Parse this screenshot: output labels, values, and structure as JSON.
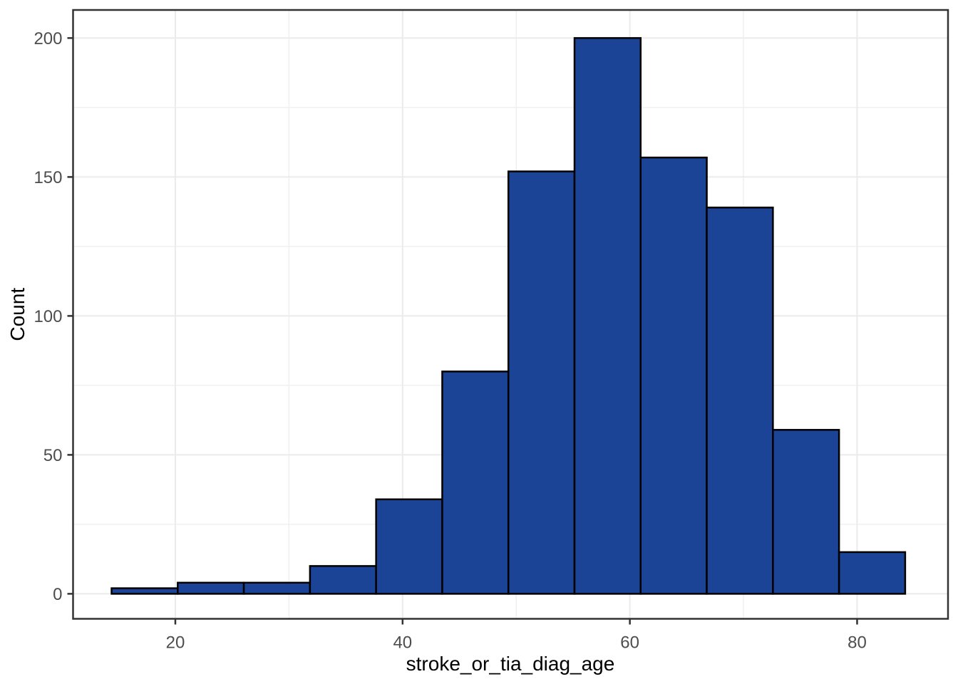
{
  "chart_data": {
    "type": "bar",
    "subtype": "histogram",
    "title": "",
    "xlabel": "stroke_or_tia_diag_age",
    "ylabel": "Count",
    "bin_start": 14.39,
    "bin_width": 5.82,
    "bin_edges": [
      14.39,
      20.21,
      26.03,
      31.85,
      37.67,
      43.49,
      49.31,
      55.13,
      60.95,
      66.77,
      72.59,
      78.41,
      84.23
    ],
    "counts": [
      2,
      4,
      4,
      10,
      34,
      80,
      152,
      200,
      157,
      139,
      59,
      15
    ],
    "total_n": 856,
    "x_major_ticks": [
      20,
      40,
      60,
      80
    ],
    "x_minor_gridlines": [
      30,
      50,
      70
    ],
    "y_major_ticks": [
      0,
      50,
      100,
      150,
      200
    ],
    "y_minor_gridlines": [
      25,
      75,
      125,
      175
    ],
    "xlim": [
      11.0,
      88.0
    ],
    "ylim": [
      -9.0,
      210.1
    ],
    "grid": "on",
    "legend": "none",
    "style": {
      "bar_fill": "#1B4396",
      "bar_stroke": "#000000",
      "grid_major_color": "#EBEBEB",
      "grid_minor_color": "#F0F0F0",
      "panel_border_color": "#333333",
      "tick_mark_color": "#333333",
      "tick_label_color": "#4D4D4D",
      "axis_title_color": "#000000",
      "background": "#FFFFFF"
    }
  }
}
